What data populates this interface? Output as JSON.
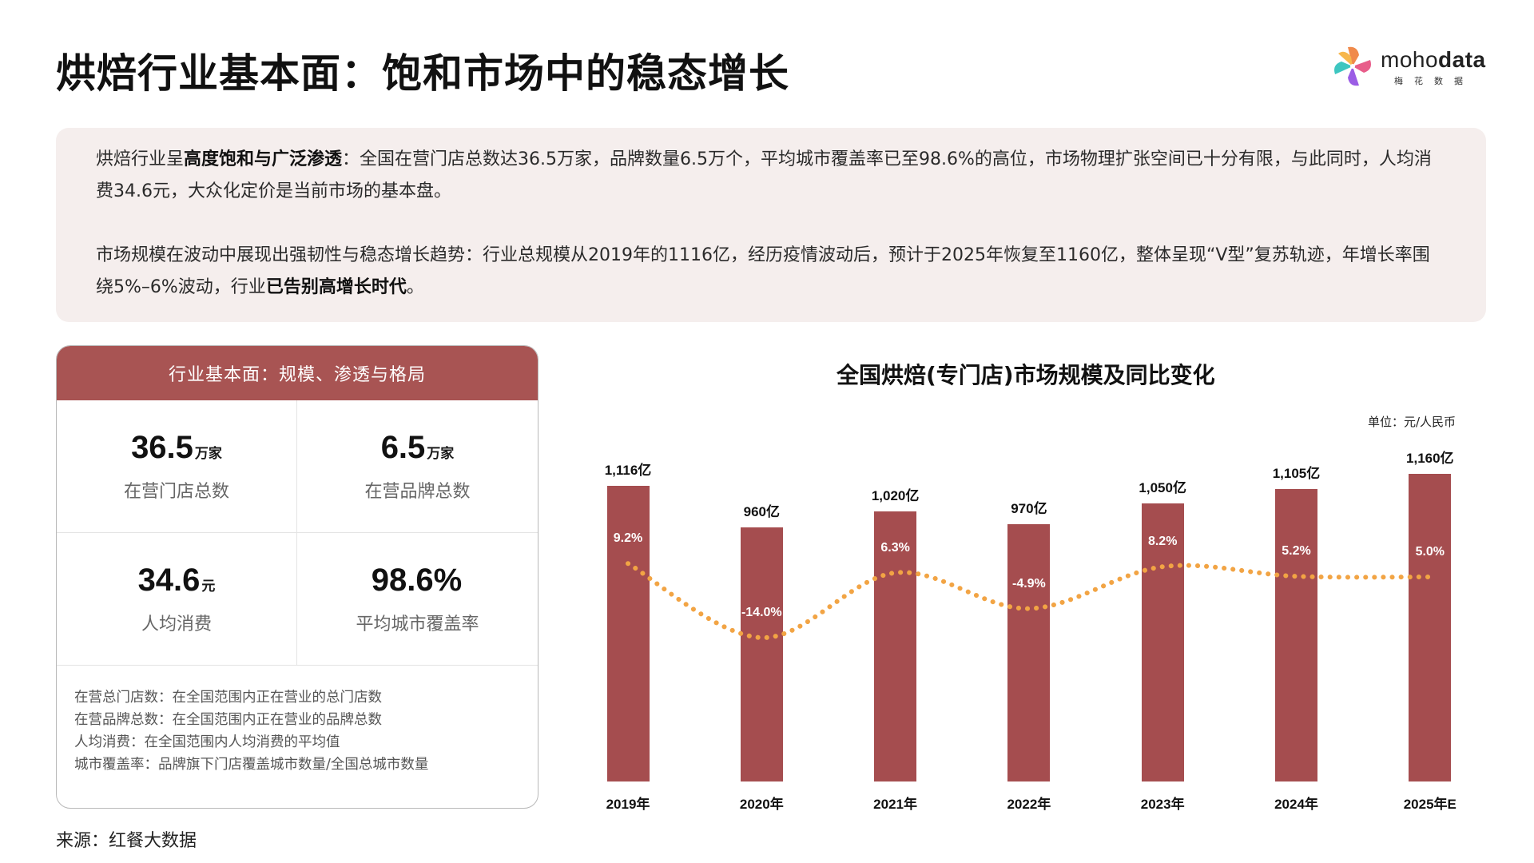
{
  "header": {
    "title": "烘焙行业基本面：饱和市场中的稳态增长",
    "logo": {
      "word_light": "moho",
      "word_bold": "data",
      "subtitle": "梅花数据"
    }
  },
  "summary": {
    "paragraph1": {
      "prefix": "烘焙行业呈",
      "bold": "高度饱和与广泛渗透",
      "rest": "：全国在营门店总数达36.5万家，品牌数量6.5万个，平均城市覆盖率已至98.6%的高位，市场物理扩张空间已十分有限，与此同时，人均消费34.6元，大众化定价是当前市场的基本盘。"
    },
    "paragraph2": {
      "prefix": "市场规模在波动中展现出强韧性与稳态增长趋势：行业总规模从2019年的1116亿，经历疫情波动后，预计于2025年恢复至1160亿，整体呈现“V型”复苏轨迹，年增长率围绕5%–6%波动，行业",
      "bold": "已告别高增长时代",
      "suffix": "。"
    }
  },
  "card": {
    "header": "行业基本面：规模、渗透与格局",
    "metrics": [
      {
        "value": "36.5",
        "unit": "万家",
        "label": "在营门店总数"
      },
      {
        "value": "6.5",
        "unit": "万家",
        "label": "在营品牌总数"
      },
      {
        "value": "34.6",
        "unit": "元",
        "label": "人均消费"
      },
      {
        "value": "98.6%",
        "unit": "",
        "label": "平均城市覆盖率"
      }
    ],
    "definitions": [
      "在营总门店数：在全国范围内正在营业的总门店数",
      "在营品牌总数：在全国范围内正在营业的品牌总数",
      "人均消费：在全国范围内人均消费的平均值",
      "城市覆盖率：品牌旗下门店覆盖城市数量/全国总城市数量"
    ]
  },
  "source": "来源：红餐大数据",
  "colors": {
    "bar": "#a54d4f",
    "card_header": "#a85453",
    "line": "#f2a444",
    "summary_bg": "#f5eeed"
  },
  "chart_data": {
    "type": "bar",
    "title": "全国烘焙(专门店)市场规模及同比变化",
    "unit_note": "单位：元/人民币",
    "categories": [
      "2019年",
      "2020年",
      "2021年",
      "2022年",
      "2023年",
      "2024年",
      "2025年E"
    ],
    "series": [
      {
        "name": "市场规模(亿)",
        "type": "bar",
        "values": [
          1116,
          960,
          1020,
          970,
          1050,
          1105,
          1160
        ],
        "labels": [
          "1,116亿",
          "960亿",
          "1,020亿",
          "970亿",
          "1,050亿",
          "1,105亿",
          "1,160亿"
        ]
      },
      {
        "name": "同比变化(%)",
        "type": "line",
        "style": "dotted",
        "values": [
          9.2,
          -14.0,
          6.3,
          -4.9,
          8.2,
          5.2,
          5.0
        ],
        "labels": [
          "9.2%",
          "-14.0%",
          "6.3%",
          "-4.9%",
          "8.2%",
          "5.2%",
          "5.0%"
        ]
      }
    ],
    "xlabel": "",
    "ylabel": "",
    "grid": false,
    "legend": "none"
  }
}
